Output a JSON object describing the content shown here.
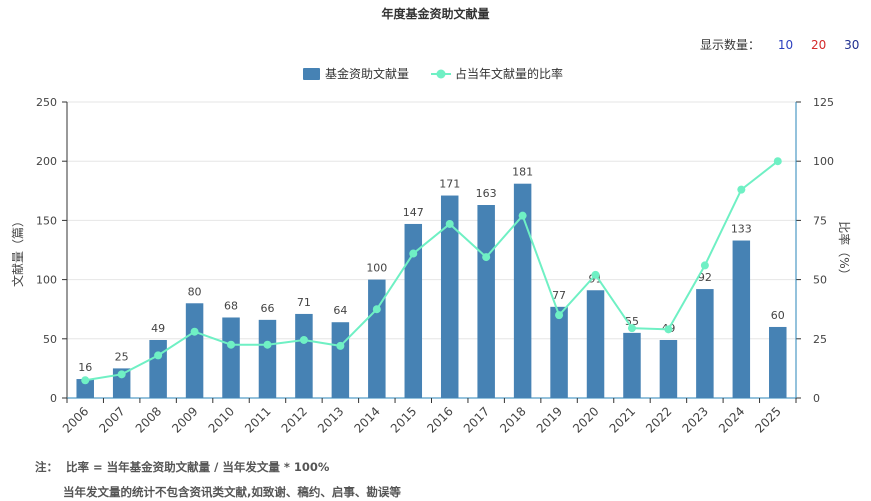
{
  "chart_data": {
    "type": "bar",
    "title": "年度基金资助文献量",
    "categories": [
      "2006",
      "2007",
      "2008",
      "2009",
      "2010",
      "2011",
      "2012",
      "2013",
      "2014",
      "2015",
      "2016",
      "2017",
      "2018",
      "2019",
      "2020",
      "2021",
      "2022",
      "2023",
      "2024",
      "2025"
    ],
    "series": [
      {
        "name": "基金资助文献量",
        "type": "bar",
        "color": "#4682b4",
        "values": [
          16,
          25,
          49,
          80,
          68,
          66,
          71,
          64,
          100,
          147,
          171,
          163,
          181,
          77,
          91,
          55,
          49,
          92,
          133,
          60
        ]
      },
      {
        "name": "占当年文献量的比率",
        "type": "line",
        "color": "#6ff0c4",
        "values": [
          7.5,
          10,
          18,
          28,
          22.5,
          22.5,
          24.5,
          22,
          37.5,
          61,
          73.5,
          59.5,
          77,
          35,
          52,
          29.5,
          29,
          56,
          88,
          100
        ]
      }
    ],
    "ylabel": "文献量（篇）",
    "y2label": "比率（%）",
    "ylim": [
      0,
      250
    ],
    "y2lim": [
      0,
      125
    ],
    "yticks": [
      0,
      50,
      100,
      150,
      200,
      250
    ],
    "y2ticks": [
      0,
      25,
      50,
      75,
      100,
      125
    ],
    "grid": true,
    "legend": "top-center"
  },
  "display_count": {
    "label": "显示数量：",
    "options": [
      "10",
      "20",
      "30"
    ]
  },
  "notes": {
    "label": "注：",
    "line1": "比率 = 当年基金资助文献量 / 当年发文量 * 100%",
    "line2": "当年发文量的统计不包含资讯类文献,如致谢、稿约、启事、勘误等"
  }
}
